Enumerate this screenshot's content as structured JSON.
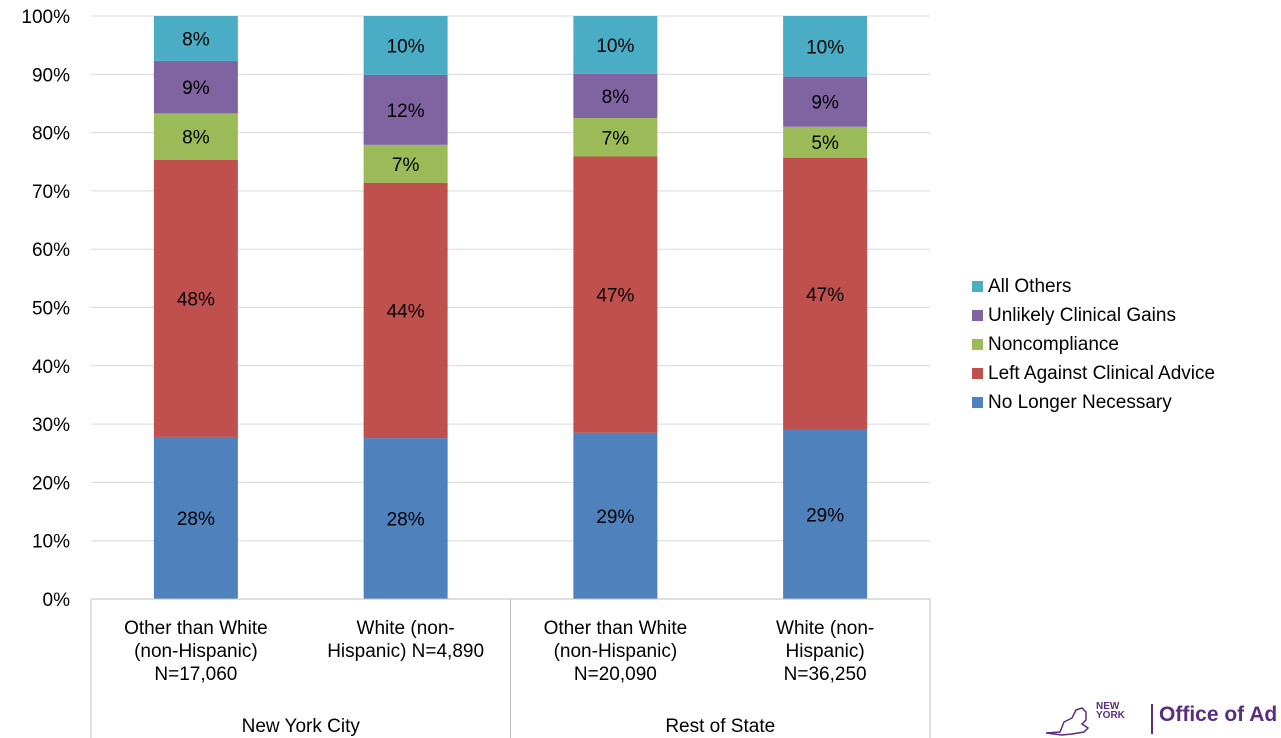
{
  "chart_data": {
    "type": "bar",
    "stacked": true,
    "ylim": [
      0,
      100
    ],
    "yticks": [
      "0%",
      "10%",
      "20%",
      "30%",
      "40%",
      "50%",
      "60%",
      "70%",
      "80%",
      "90%",
      "100%"
    ],
    "categories": [
      "Other than White (non-Hispanic) N=17,060",
      "White (non-Hispanic) N=4,890",
      "Other than White (non-Hispanic) N=20,090",
      "White (non-Hispanic) N=36,250"
    ],
    "category_lines": [
      [
        "Other than White",
        "(non-Hispanic)",
        "N=17,060"
      ],
      [
        "White (non-",
        "Hispanic) N=4,890"
      ],
      [
        "Other than White",
        "(non-Hispanic)",
        "N=20,090"
      ],
      [
        "White (non-",
        "Hispanic)",
        "N=36,250"
      ]
    ],
    "groups": [
      {
        "label": "New York City",
        "categories": [
          0,
          1
        ]
      },
      {
        "label": "Rest of State",
        "categories": [
          2,
          3
        ]
      }
    ],
    "series": [
      {
        "name": "No Longer Necessary",
        "color": "#4f81bd",
        "values": [
          27.8,
          27.6,
          28.5,
          29.0
        ],
        "labels": [
          "28%",
          "28%",
          "29%",
          "29%"
        ]
      },
      {
        "name": "Left Against Clinical Advice",
        "color": "#c0504d",
        "values": [
          47.5,
          43.8,
          47.4,
          46.7
        ],
        "labels": [
          "48%",
          "44%",
          "47%",
          "47%"
        ]
      },
      {
        "name": "Noncompliance",
        "color": "#9bbb59",
        "values": [
          8.0,
          6.5,
          6.6,
          5.3
        ],
        "labels": [
          "8%",
          "7%",
          "7%",
          "5%"
        ]
      },
      {
        "name": "Unlikely Clinical Gains",
        "color": "#8064a2",
        "values": [
          9.0,
          12.0,
          7.6,
          8.6
        ],
        "labels": [
          "9%",
          "12%",
          "8%",
          "9%"
        ]
      },
      {
        "name": "All Others",
        "color": "#4bacc6",
        "values": [
          7.7,
          10.1,
          9.9,
          10.4
        ],
        "labels": [
          "8%",
          "10%",
          "10%",
          "10%"
        ]
      }
    ],
    "legend_position": "right",
    "grid": true
  },
  "logo": {
    "state_word_1": "NEW",
    "state_word_2": "YORK",
    "office_text": "Office of Ad"
  }
}
